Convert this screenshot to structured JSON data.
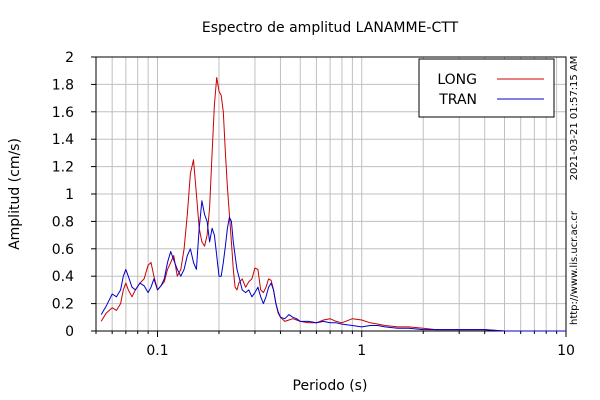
{
  "chart_data": {
    "type": "line",
    "title": "Espectro de amplitud LANAMME-CTT",
    "xlabel": "Periodo (s)",
    "ylabel": "Amplitud (cm/s)",
    "xscale": "log",
    "xlim": [
      0.05,
      10
    ],
    "ylim": [
      0,
      2
    ],
    "grid": true,
    "legend_position": "top-right",
    "x_tick_labels": [
      "0.1",
      "1",
      "10"
    ],
    "x_tick_values": [
      0.1,
      1,
      10
    ],
    "y_tick_labels": [
      "0",
      "0.2",
      "0.4",
      "0.6",
      "0.8",
      "1",
      "1.2",
      "1.4",
      "1.6",
      "1.8",
      "2"
    ],
    "y_tick_values": [
      0,
      0.2,
      0.4,
      0.6,
      0.8,
      1.0,
      1.2,
      1.4,
      1.6,
      1.8,
      2.0
    ],
    "series": [
      {
        "name": "LONG",
        "color": "#cc0000",
        "x": [
          0.053,
          0.056,
          0.06,
          0.063,
          0.066,
          0.068,
          0.07,
          0.072,
          0.075,
          0.078,
          0.082,
          0.086,
          0.09,
          0.093,
          0.096,
          0.1,
          0.104,
          0.108,
          0.112,
          0.116,
          0.12,
          0.125,
          0.13,
          0.135,
          0.14,
          0.145,
          0.15,
          0.155,
          0.16,
          0.165,
          0.17,
          0.175,
          0.18,
          0.185,
          0.19,
          0.195,
          0.2,
          0.205,
          0.21,
          0.215,
          0.22,
          0.225,
          0.23,
          0.235,
          0.24,
          0.245,
          0.25,
          0.26,
          0.27,
          0.28,
          0.29,
          0.3,
          0.31,
          0.32,
          0.33,
          0.34,
          0.35,
          0.36,
          0.37,
          0.38,
          0.39,
          0.4,
          0.42,
          0.44,
          0.46,
          0.48,
          0.5,
          0.55,
          0.6,
          0.65,
          0.7,
          0.75,
          0.8,
          0.9,
          1.0,
          1.1,
          1.2,
          1.3,
          1.5,
          1.7,
          2.0,
          2.3,
          2.6,
          3.0,
          4.0,
          5.0,
          6.0,
          8.0,
          10.0
        ],
        "values": [
          0.07,
          0.13,
          0.17,
          0.15,
          0.2,
          0.3,
          0.35,
          0.3,
          0.25,
          0.3,
          0.35,
          0.38,
          0.48,
          0.5,
          0.4,
          0.3,
          0.33,
          0.36,
          0.45,
          0.5,
          0.55,
          0.4,
          0.45,
          0.6,
          0.85,
          1.15,
          1.25,
          1.0,
          0.75,
          0.65,
          0.62,
          0.7,
          0.9,
          1.3,
          1.65,
          1.85,
          1.75,
          1.72,
          1.6,
          1.3,
          1.05,
          0.85,
          0.65,
          0.45,
          0.32,
          0.3,
          0.35,
          0.38,
          0.32,
          0.36,
          0.38,
          0.46,
          0.45,
          0.3,
          0.28,
          0.32,
          0.38,
          0.37,
          0.3,
          0.2,
          0.13,
          0.1,
          0.07,
          0.08,
          0.09,
          0.08,
          0.07,
          0.06,
          0.06,
          0.08,
          0.09,
          0.07,
          0.06,
          0.09,
          0.08,
          0.06,
          0.05,
          0.04,
          0.03,
          0.03,
          0.02,
          0.01,
          0.01,
          0.01,
          0.01,
          0.0,
          0.0,
          0.0,
          0.0
        ]
      },
      {
        "name": "TRAN",
        "color": "#0000cc",
        "x": [
          0.053,
          0.056,
          0.06,
          0.063,
          0.066,
          0.068,
          0.07,
          0.072,
          0.075,
          0.078,
          0.082,
          0.086,
          0.09,
          0.093,
          0.096,
          0.1,
          0.104,
          0.108,
          0.112,
          0.116,
          0.12,
          0.125,
          0.13,
          0.135,
          0.14,
          0.145,
          0.15,
          0.155,
          0.16,
          0.165,
          0.17,
          0.175,
          0.18,
          0.185,
          0.19,
          0.195,
          0.2,
          0.205,
          0.21,
          0.215,
          0.22,
          0.225,
          0.23,
          0.235,
          0.24,
          0.245,
          0.25,
          0.26,
          0.27,
          0.28,
          0.29,
          0.3,
          0.31,
          0.32,
          0.33,
          0.34,
          0.35,
          0.36,
          0.37,
          0.38,
          0.39,
          0.4,
          0.42,
          0.44,
          0.46,
          0.48,
          0.5,
          0.55,
          0.6,
          0.65,
          0.7,
          0.75,
          0.8,
          0.9,
          1.0,
          1.1,
          1.2,
          1.3,
          1.5,
          1.7,
          2.0,
          2.3,
          2.6,
          3.0,
          4.0,
          5.0,
          6.0,
          8.0,
          10.0
        ],
        "values": [
          0.12,
          0.18,
          0.27,
          0.25,
          0.3,
          0.4,
          0.45,
          0.4,
          0.32,
          0.3,
          0.35,
          0.33,
          0.28,
          0.32,
          0.38,
          0.3,
          0.33,
          0.38,
          0.5,
          0.58,
          0.52,
          0.45,
          0.4,
          0.45,
          0.55,
          0.6,
          0.5,
          0.45,
          0.75,
          0.95,
          0.85,
          0.8,
          0.65,
          0.75,
          0.7,
          0.55,
          0.4,
          0.4,
          0.5,
          0.62,
          0.75,
          0.83,
          0.8,
          0.65,
          0.55,
          0.45,
          0.4,
          0.3,
          0.28,
          0.3,
          0.25,
          0.28,
          0.32,
          0.25,
          0.2,
          0.25,
          0.32,
          0.35,
          0.3,
          0.2,
          0.14,
          0.1,
          0.09,
          0.12,
          0.1,
          0.09,
          0.07,
          0.07,
          0.06,
          0.07,
          0.06,
          0.06,
          0.05,
          0.04,
          0.03,
          0.04,
          0.04,
          0.03,
          0.02,
          0.02,
          0.01,
          0.01,
          0.01,
          0.01,
          0.01,
          0.0,
          0.0,
          0.0,
          0.0
        ]
      }
    ]
  },
  "side_labels": {
    "timestamp": "2021-03-21 01:57:15 AM",
    "url": "http://www.lis.ucr.ac.cr"
  }
}
